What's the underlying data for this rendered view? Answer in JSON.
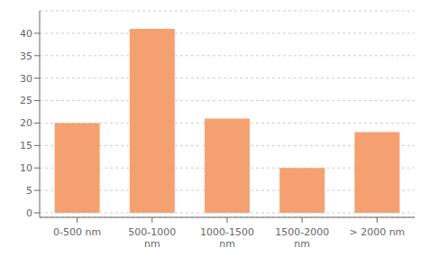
{
  "chart_data": {
    "type": "bar",
    "categories": [
      "0-500 nm",
      "500-1000\nnm",
      "1000-1500\nnm",
      "1500-2000\nnm",
      "> 2000 nm"
    ],
    "values": [
      20,
      41,
      21,
      10,
      18
    ],
    "color": "#F5A070",
    "ylim": [
      -1,
      45
    ],
    "yticks": [
      0,
      5,
      10,
      15,
      20,
      25,
      30,
      35,
      40
    ],
    "grid": true
  }
}
